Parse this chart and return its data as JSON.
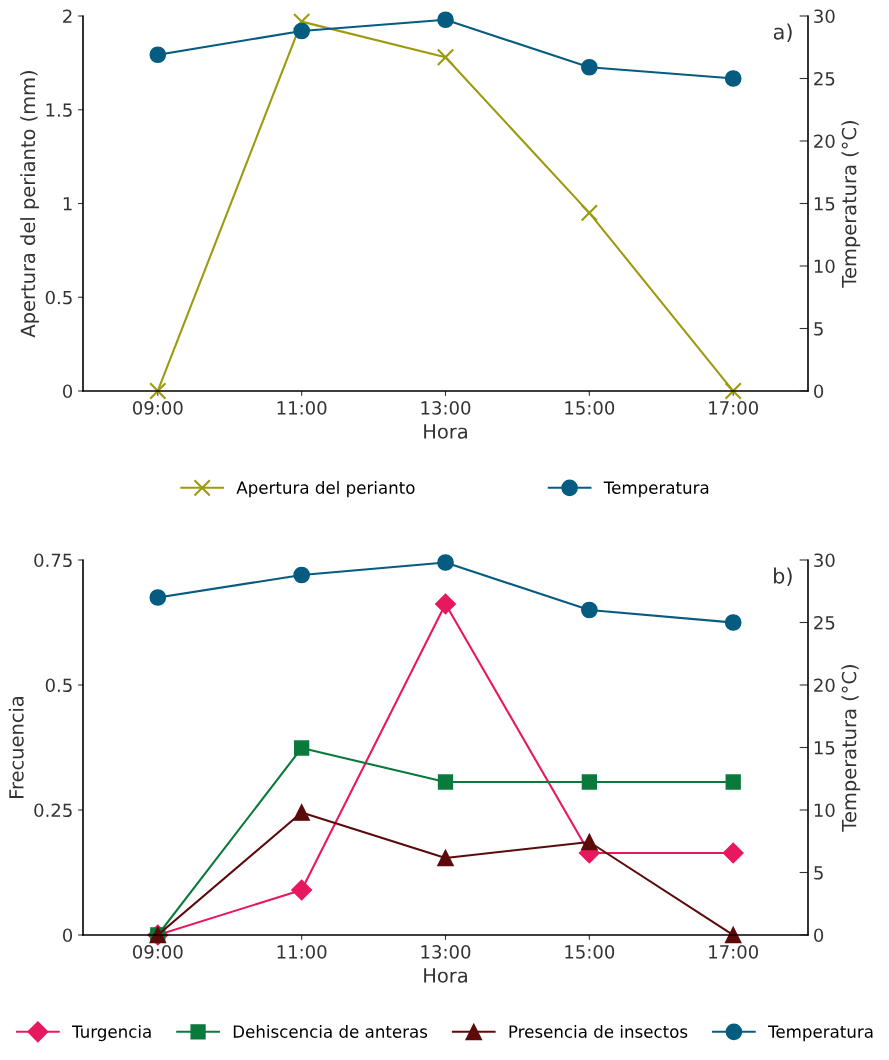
{
  "chart_data": [
    {
      "type": "line",
      "categories": [
        "09:00",
        "11:00",
        "13:00",
        "15:00",
        "17:00"
      ],
      "xlabel": "Hora",
      "ylabel": "Apertura del perianto (mm)",
      "y2label": "Temperatura (°C)",
      "ylim": [
        0,
        2
      ],
      "yticks": [
        0,
        0.5,
        1,
        1.5,
        2
      ],
      "y2lim": [
        0,
        30
      ],
      "y2ticks": [
        0,
        5,
        10,
        15,
        20,
        25,
        30
      ],
      "legend": "bottom",
      "grid": false,
      "annotations": [
        "a)"
      ],
      "series": [
        {
          "name": "Apertura del perianto",
          "color": "#9c9a0e",
          "marker": "cross",
          "values": [
            0,
            1.97,
            1.78,
            0.95,
            0
          ]
        },
        {
          "name": "Temperatura",
          "color": "#055c80",
          "marker": "circle",
          "axis": "y2",
          "values": [
            26.9,
            28.8,
            29.7,
            25.9,
            25.0
          ]
        }
      ]
    },
    {
      "type": "line",
      "categories": [
        "09:00",
        "11:00",
        "13:00",
        "15:00",
        "17:00"
      ],
      "xlabel": "Hora",
      "ylabel": "Frecuencia",
      "y2label": "Temperatura (°C)",
      "ylim": [
        0,
        0.75
      ],
      "yticks": [
        0,
        0.25,
        0.5,
        0.75
      ],
      "y2lim": [
        0,
        30
      ],
      "y2ticks": [
        0,
        5,
        10,
        15,
        20,
        25,
        30
      ],
      "legend": "bottom",
      "grid": false,
      "annotations": [
        "b)"
      ],
      "series": [
        {
          "name": "Turgencia",
          "color": "#e8185e",
          "marker": "diamond",
          "values": [
            0,
            0.09,
            0.662,
            0.164,
            0.164
          ]
        },
        {
          "name": "Dehiscencia de anteras",
          "color": "#0a7a3c",
          "marker": "square",
          "values": [
            0,
            0.374,
            0.306,
            0.306,
            0.306
          ]
        },
        {
          "name": "Presencia de insectos",
          "color": "#5c0a0a",
          "marker": "triangle",
          "values": [
            0,
            0.245,
            0.154,
            0.186,
            0
          ]
        },
        {
          "name": "Temperatura",
          "color": "#055c80",
          "marker": "circle",
          "axis": "y2",
          "values": [
            27.0,
            28.8,
            29.8,
            26.0,
            25.0
          ]
        }
      ]
    }
  ]
}
